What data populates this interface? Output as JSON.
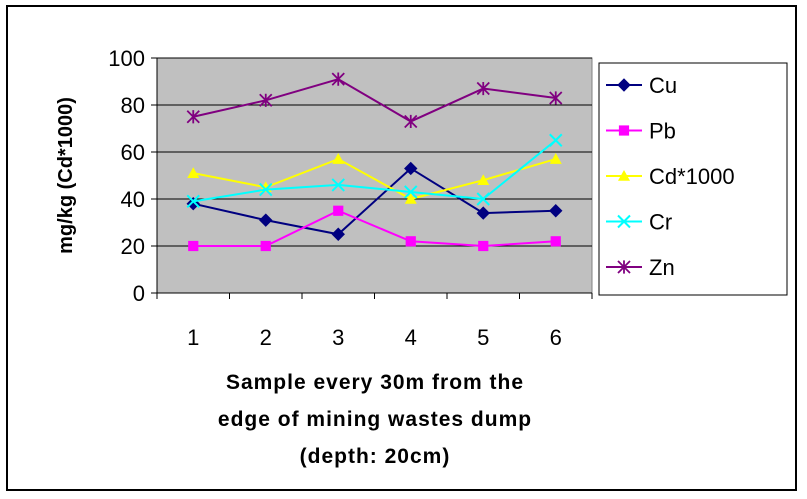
{
  "chart_data": {
    "type": "line",
    "categories": [
      "1",
      "2",
      "3",
      "4",
      "5",
      "6"
    ],
    "ylabel": "mg/kg (Cd*1000)",
    "xlabel": [
      "Sample every 30m from the",
      "edge of mining wastes dump",
      "(depth: 20cm)"
    ],
    "ylim": [
      0,
      100
    ],
    "yticks": [
      "0",
      "20",
      "40",
      "60",
      "80",
      "100"
    ],
    "grid": true,
    "legend_position": "right",
    "plot_background": "#c0c0c0",
    "series": [
      {
        "name": "Cu",
        "values": [
          38,
          31,
          25,
          53,
          34,
          35
        ],
        "color": "#000080",
        "marker": "diamond"
      },
      {
        "name": "Pb",
        "values": [
          20,
          20,
          35,
          22,
          20,
          22
        ],
        "color": "#ff00ff",
        "marker": "square"
      },
      {
        "name": "Cd*1000",
        "values": [
          51,
          45,
          57,
          40,
          48,
          57
        ],
        "color": "#ffff00",
        "marker": "triangle"
      },
      {
        "name": "Cr",
        "values": [
          39,
          44,
          46,
          43,
          40,
          65
        ],
        "color": "#00ffff",
        "marker": "x"
      },
      {
        "name": "Zn",
        "values": [
          75,
          82,
          91,
          73,
          87,
          83
        ],
        "color": "#800080",
        "marker": "star"
      }
    ]
  }
}
